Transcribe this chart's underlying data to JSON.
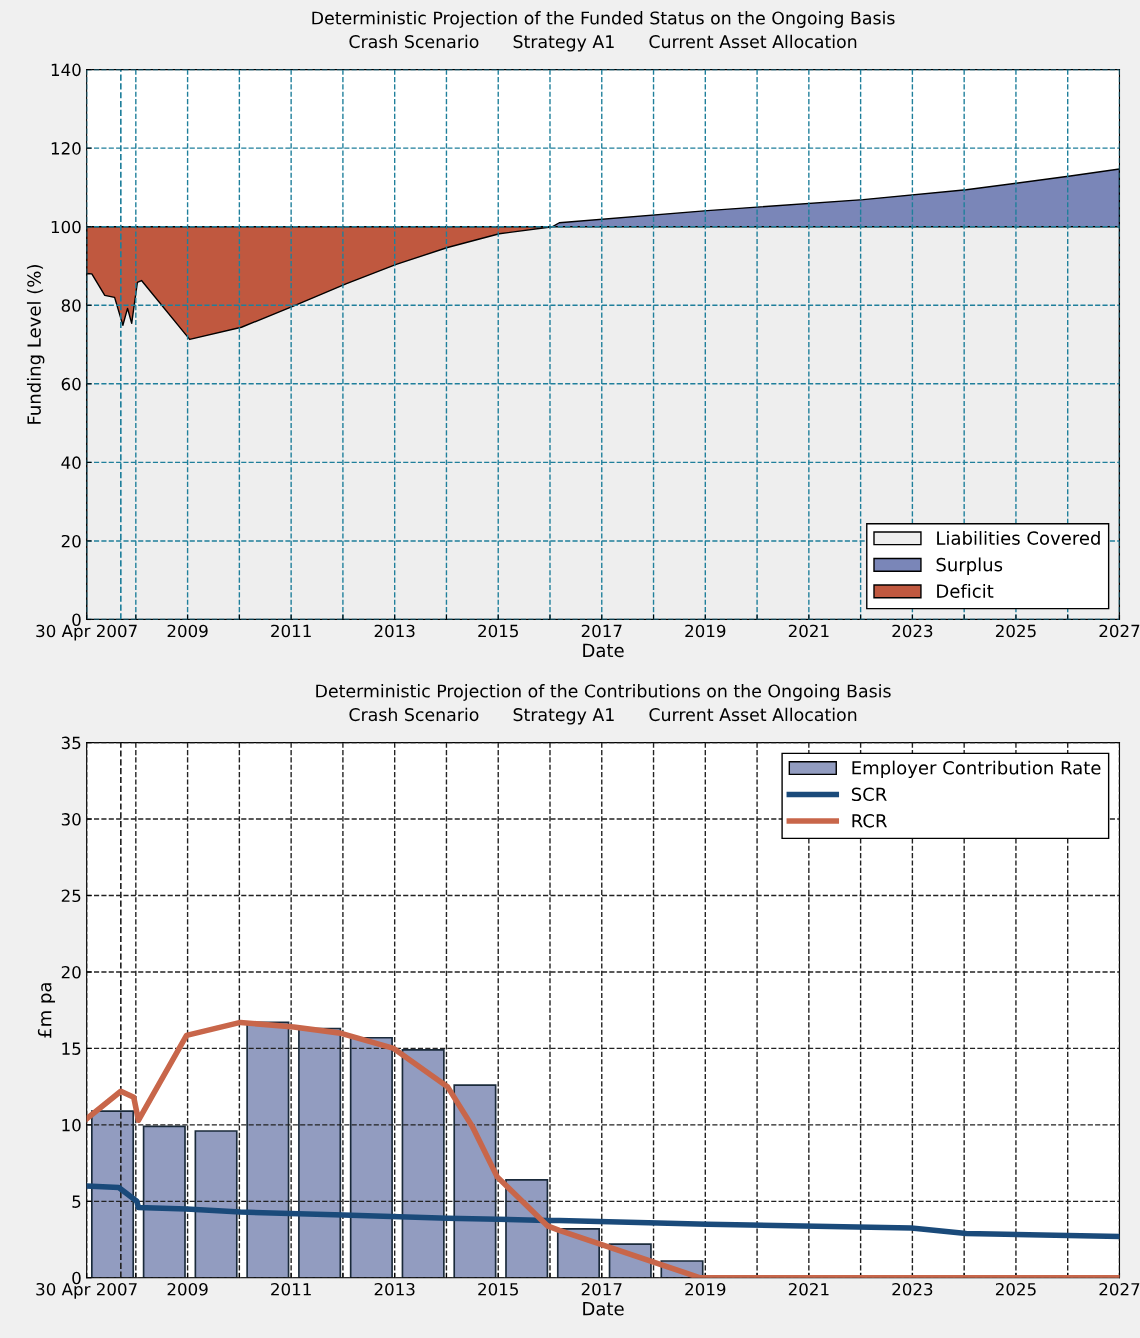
{
  "chart_data": [
    {
      "type": "area",
      "title": "Deterministic Projection of the Funded Status on the Ongoing Basis",
      "subtitle": "Crash Scenario      Strategy A1      Current Asset Allocation",
      "xlabel": "Date",
      "ylabel": "Funding Level (%)",
      "x": [
        2007.05,
        2007.15,
        2007.4,
        2007.59,
        2007.75,
        2007.84,
        2007.92,
        2008.03,
        2008.11,
        2009.04,
        2010.04,
        2011.03,
        2012.07,
        2013.03,
        2014.02,
        2015.02,
        2016.05,
        2016.18,
        2019.04,
        2022.05,
        2024.04,
        2026.05,
        2027.0
      ],
      "series": [
        {
          "name": "Liabilities Covered",
          "color": "#eeeeee",
          "values": [
            88.1,
            88,
            82.5,
            82,
            74.9,
            79.2,
            75.4,
            85.8,
            86.3,
            71.3,
            74.4,
            79.7,
            85.5,
            90.4,
            94.7,
            98.2,
            100,
            100,
            100,
            100,
            100,
            100,
            100
          ]
        },
        {
          "name": "Surplus",
          "color": "#7a86b8",
          "x": [
            2016.05,
            2016.18,
            2019.04,
            2022.05,
            2024.04,
            2026.05,
            2027.0
          ],
          "values": [
            100,
            101,
            104.1,
            106.9,
            109.4,
            112.9,
            114.7
          ]
        },
        {
          "name": "Deficit",
          "color": "#c0583f",
          "x": [
            2007.05,
            2016.05
          ],
          "values": [
            100,
            100
          ]
        }
      ],
      "xlim": [
        2007.05,
        2027
      ],
      "ylim": [
        0,
        140
      ],
      "yticks": [
        0,
        20,
        40,
        60,
        80,
        100,
        120,
        140
      ],
      "xticks": [
        {
          "value": 2007.05,
          "label": "30 Apr 2007"
        },
        {
          "value": 2008,
          "label": null
        },
        2009,
        {
          "value": 2010,
          "label": null
        },
        2011,
        {
          "value": 2012,
          "label": null
        },
        2013,
        {
          "value": 2014,
          "label": null
        },
        2015,
        {
          "value": 2016,
          "label": null
        },
        2017,
        {
          "value": 2018,
          "label": null
        },
        2019,
        {
          "value": 2020,
          "label": null
        },
        2021,
        {
          "value": 2022,
          "label": null
        },
        2023,
        {
          "value": 2024,
          "label": null
        },
        2025,
        {
          "value": 2026,
          "label": null
        },
        2027
      ],
      "ref_lines": [
        {
          "axis": "x",
          "value": 2007.71,
          "line_style": "dashed",
          "color": "#1f7f9b"
        }
      ],
      "grid": true,
      "legend": "bottom right"
    },
    {
      "type": "line",
      "title": "Deterministic Projection of the Contributions on the Ongoing Basis",
      "subtitle": "Crash Scenario      Strategy A1      Current Asset Allocation",
      "xlabel": "Date",
      "ylabel": "£m pa",
      "series": [
        {
          "name": "Employer Contribution Rate",
          "type": "bar",
          "color": "#929cc0",
          "x": [
            2007.55,
            2008.55,
            2009.55,
            2010.55,
            2011.55,
            2012.55,
            2013.55,
            2014.55,
            2015.55,
            2016.55,
            2017.55,
            2018.55
          ],
          "values": [
            10.9,
            9.9,
            9.6,
            16.7,
            16.3,
            15.7,
            14.9,
            12.6,
            6.4,
            3.2,
            2.2,
            1.1
          ]
        },
        {
          "name": "SCR",
          "color": "#1a4a7a",
          "x": [
            2007.05,
            2007.67,
            2008.02,
            2008.05,
            2008.98,
            2010.02,
            2012.01,
            2014.02,
            2015.95,
            2016.18,
            2019.04,
            2022.98,
            2024.04,
            2027.0
          ],
          "values": [
            6.0,
            5.9,
            5.0,
            4.6,
            4.5,
            4.3,
            4.1,
            3.9,
            3.75,
            3.75,
            3.5,
            3.25,
            2.9,
            2.7
          ]
        },
        {
          "name": "RCR",
          "color": "#c8664a",
          "x": [
            2007.05,
            2007.71,
            2007.96,
            2008.05,
            2008.98,
            2010.02,
            2011.05,
            2011.95,
            2012.98,
            2014.02,
            2014.5,
            2014.98,
            2015.95,
            2016.18,
            2018.9,
            2027.0
          ],
          "values": [
            10.4,
            12.2,
            11.8,
            10.3,
            15.85,
            16.7,
            16.4,
            16.0,
            15.0,
            12.5,
            9.9,
            6.6,
            3.4,
            3.1,
            0,
            0
          ]
        }
      ],
      "xlim": [
        2007.05,
        2027
      ],
      "ylim": [
        0,
        35
      ],
      "yticks": [
        0,
        5,
        10,
        15,
        20,
        25,
        30,
        35
      ],
      "xticks": [
        {
          "value": 2007.05,
          "label": "30 Apr 2007"
        },
        {
          "value": 2008,
          "label": null
        },
        2009,
        {
          "value": 2010,
          "label": null
        },
        2011,
        {
          "value": 2012,
          "label": null
        },
        2013,
        {
          "value": 2014,
          "label": null
        },
        2015,
        {
          "value": 2016,
          "label": null
        },
        2017,
        {
          "value": 2018,
          "label": null
        },
        2019,
        {
          "value": 2020,
          "label": null
        },
        2021,
        {
          "value": 2022,
          "label": null
        },
        2023,
        {
          "value": 2024,
          "label": null
        },
        2025,
        {
          "value": 2026,
          "label": null
        },
        2027
      ],
      "ref_lines": [
        {
          "axis": "x",
          "value": 2007.71,
          "line_style": "dashed",
          "color": "#222222"
        }
      ],
      "grid": true,
      "legend": "top right",
      "line_style": "solid",
      "marker": "none"
    }
  ]
}
